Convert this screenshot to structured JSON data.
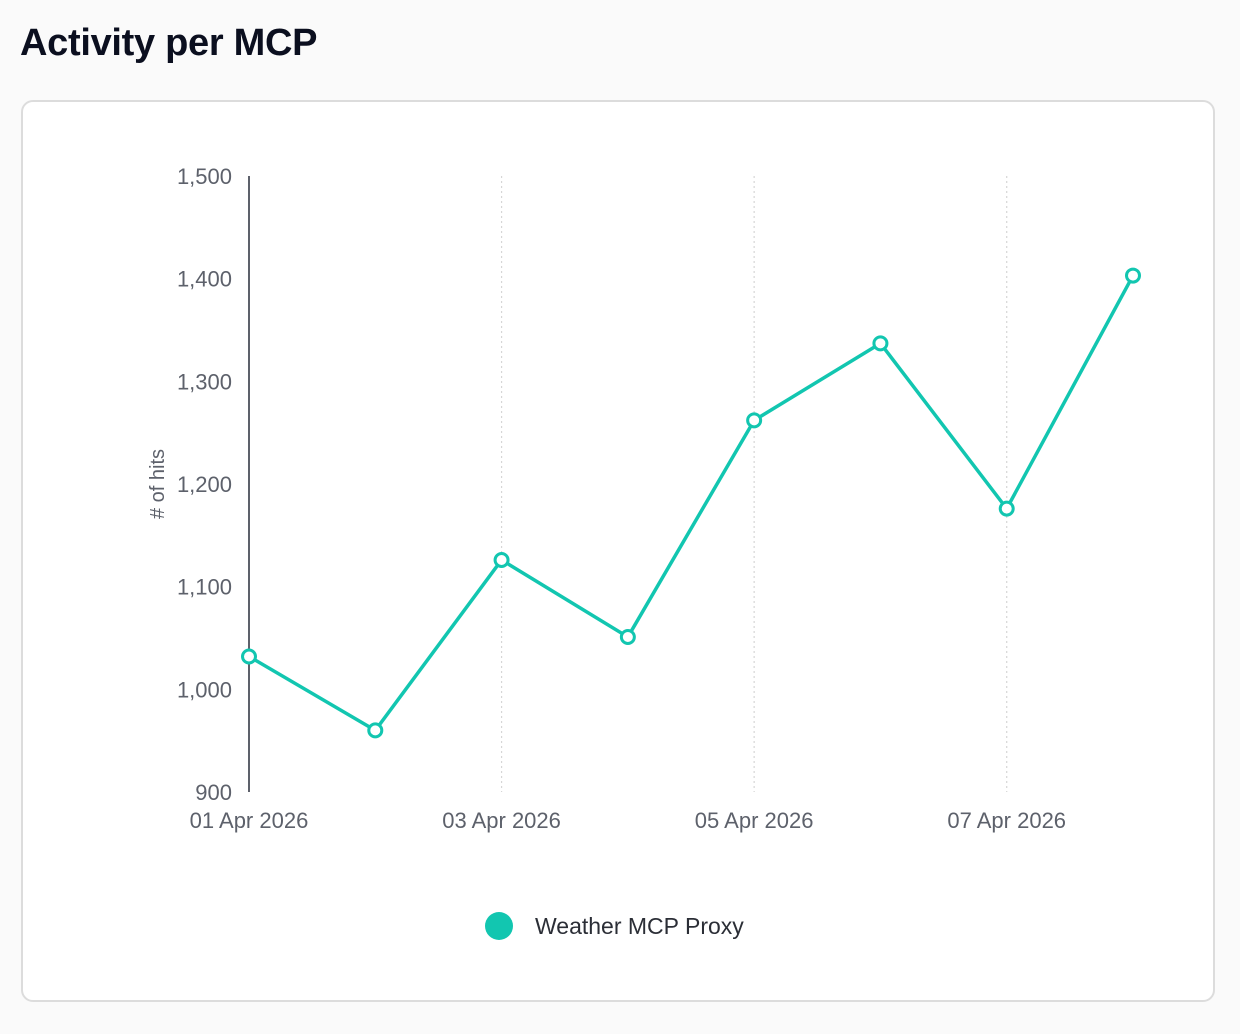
{
  "header": {
    "title": "Activity per MCP"
  },
  "colors": {
    "series": "#12c6b0",
    "axis": "#5d616b",
    "grid": "#d6d6d6"
  },
  "chart_data": {
    "type": "line",
    "title": "",
    "xlabel": "",
    "ylabel": "# of hits",
    "x": [
      "01 Apr 2026",
      "02 Apr 2026",
      "03 Apr 2026",
      "04 Apr 2026",
      "05 Apr 2026",
      "06 Apr 2026",
      "07 Apr 2026",
      "08 Apr 2026"
    ],
    "x_tick_labels": [
      "01 Apr 2026",
      "03 Apr 2026",
      "05 Apr 2026",
      "07 Apr 2026"
    ],
    "y_ticks": [
      900,
      1000,
      1100,
      1200,
      1300,
      1400,
      1500
    ],
    "y_tick_labels": [
      "900",
      "1,000",
      "1,100",
      "1,200",
      "1,300",
      "1,400",
      "1,500"
    ],
    "ylim": [
      900,
      1500
    ],
    "grid": "vertical dotted at labeled dates",
    "legend_position": "bottom-center",
    "series": [
      {
        "name": "Weather MCP Proxy",
        "values": [
          1032,
          960,
          1126,
          1051,
          1262,
          1337,
          1176,
          1403
        ]
      }
    ]
  }
}
